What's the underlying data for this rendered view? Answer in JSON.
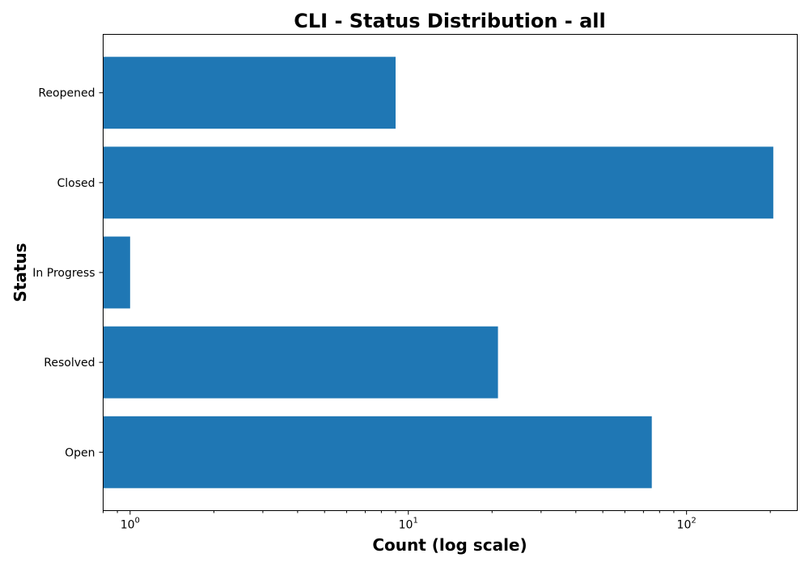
{
  "chart_data": {
    "type": "bar",
    "orientation": "horizontal",
    "title": "CLI - Status Distribution - all",
    "xlabel": "Count (log scale)",
    "ylabel": "Status",
    "x_scale": "log",
    "xlim": [
      0.8,
      250
    ],
    "categories": [
      "Open",
      "Resolved",
      "In Progress",
      "Closed",
      "Reopened"
    ],
    "values": [
      75,
      21,
      1,
      205,
      9
    ],
    "bar_color": "#1f77b4",
    "x_ticks": [
      {
        "value": 1,
        "base": "10",
        "exp": "0"
      },
      {
        "value": 10,
        "base": "10",
        "exp": "1"
      },
      {
        "value": 100,
        "base": "10",
        "exp": "2"
      }
    ],
    "grid": false,
    "legend": "none"
  }
}
